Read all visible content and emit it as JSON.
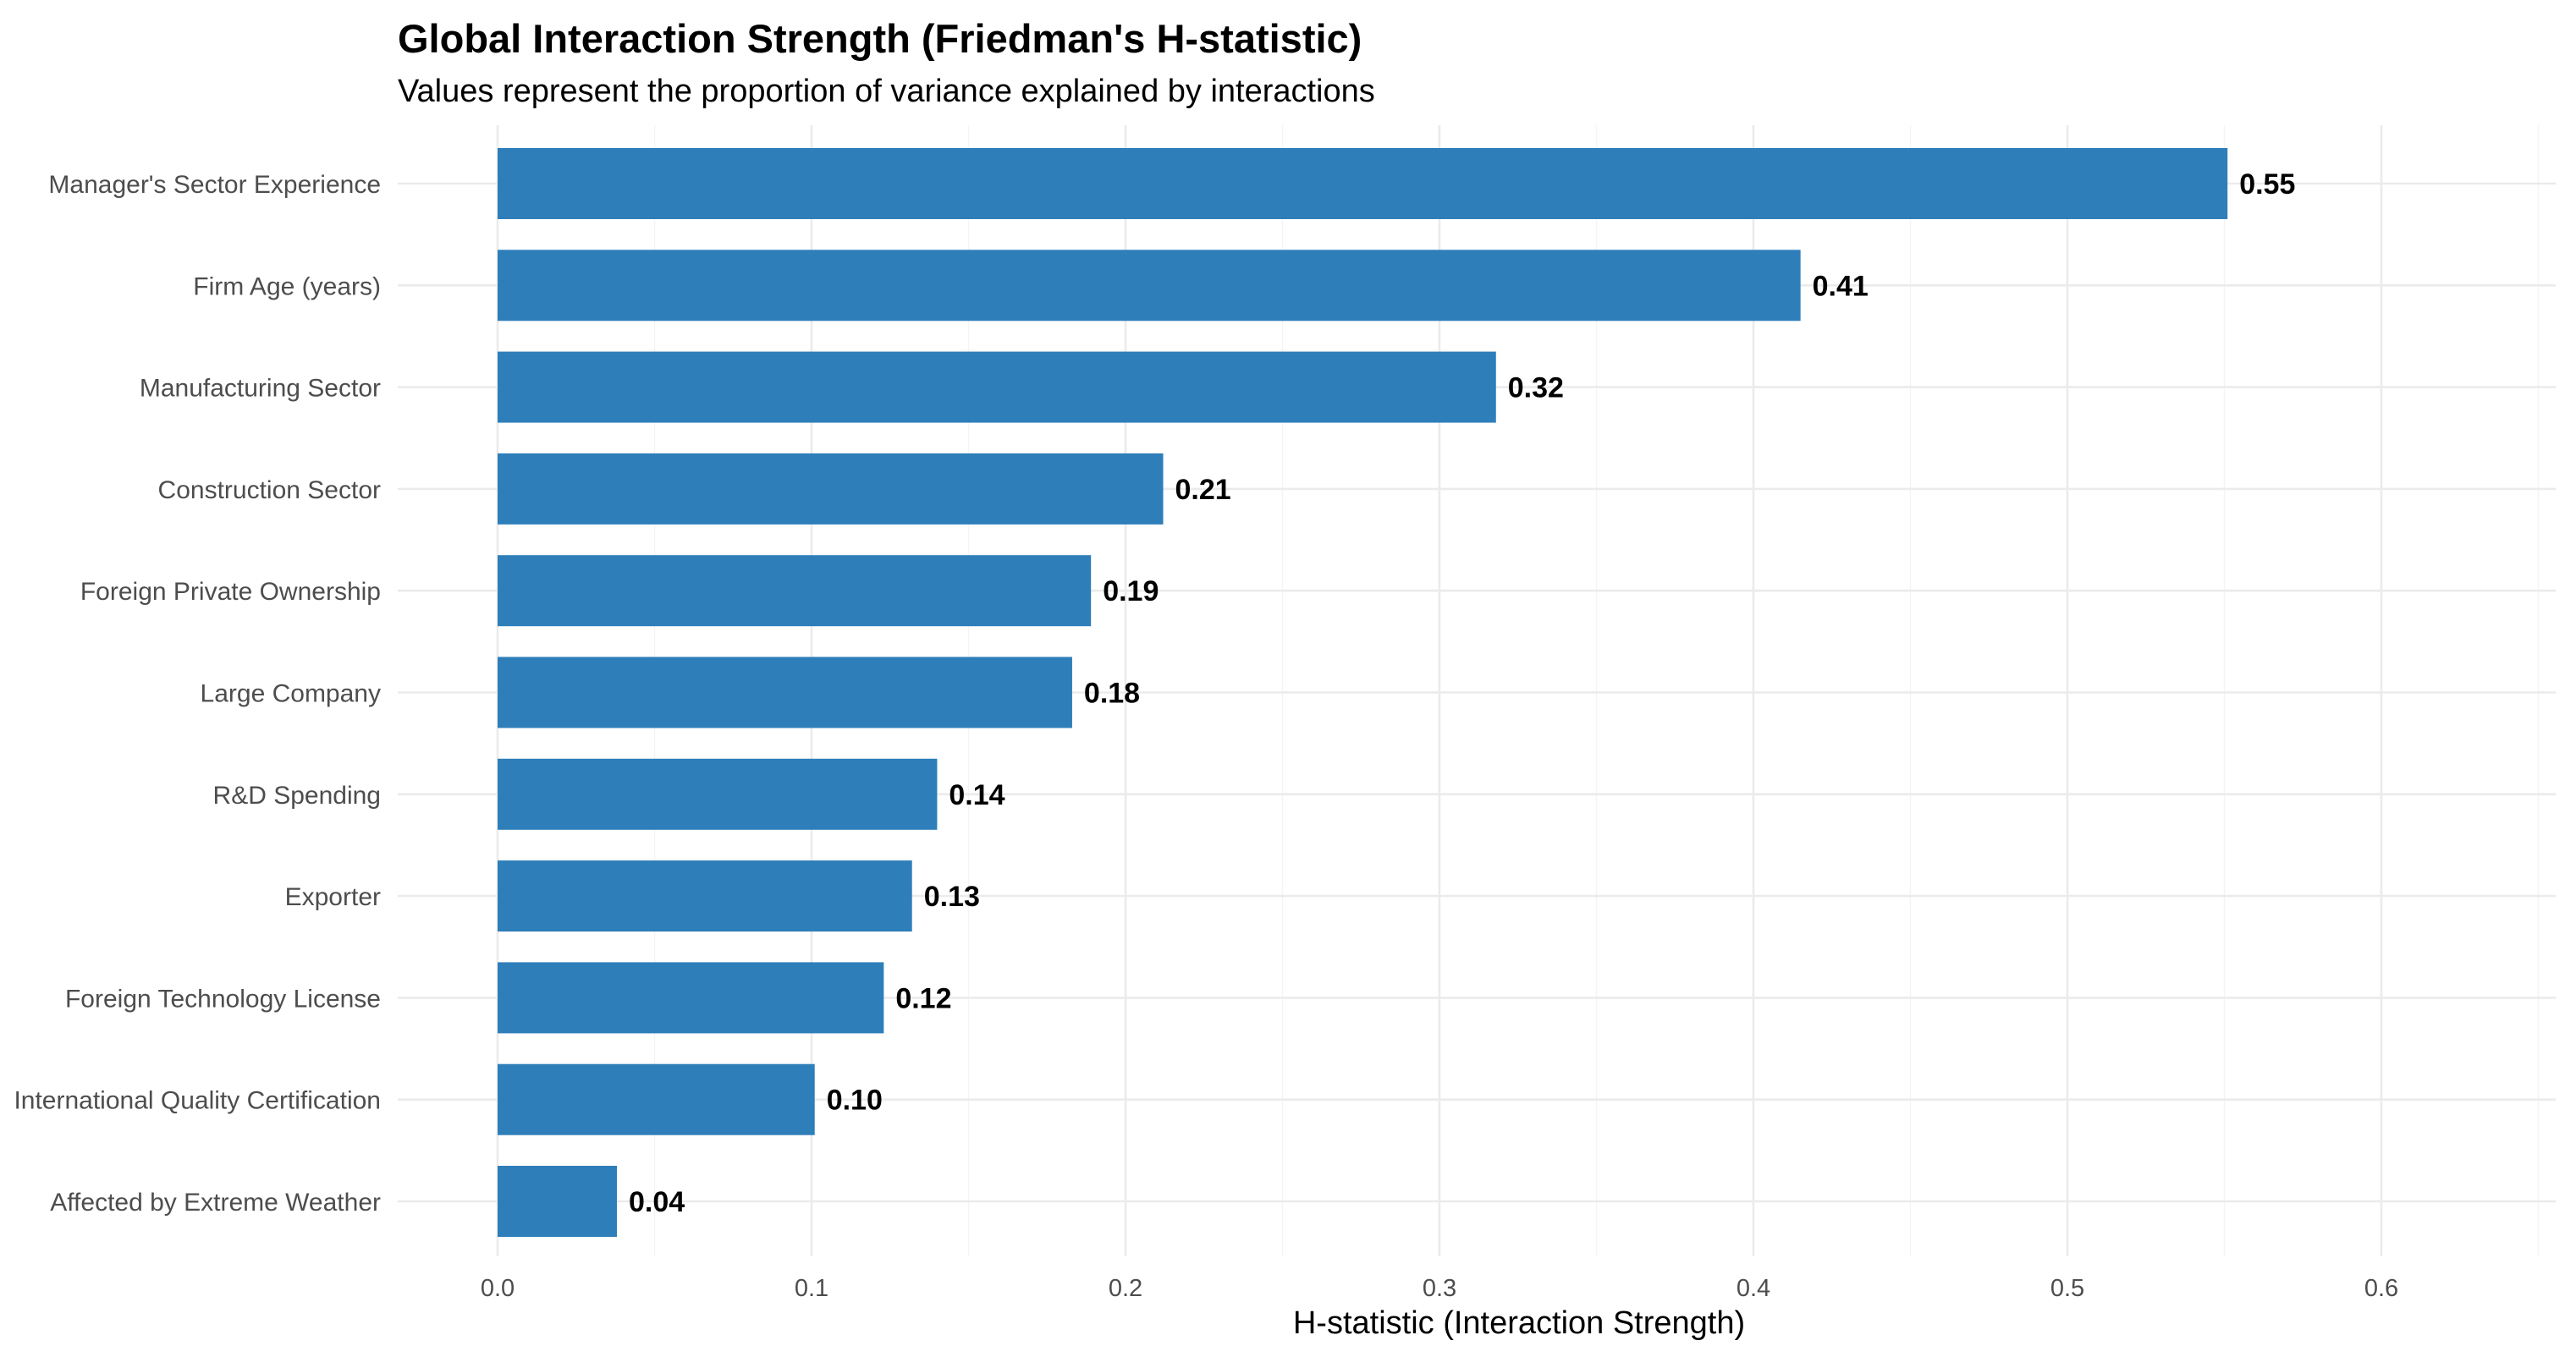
{
  "chart_data": {
    "type": "bar",
    "orientation": "horizontal",
    "title": "Global Interaction Strength (Friedman's H-statistic)",
    "subtitle": "Values represent the proportion of variance explained by interactions",
    "xlabel": "H-statistic (Interaction Strength)",
    "ylabel": "",
    "xlim": [
      0,
      0.65
    ],
    "x_ticks": [
      0.0,
      0.1,
      0.2,
      0.3,
      0.4,
      0.5,
      0.6
    ],
    "x_tick_labels": [
      "0.0",
      "0.1",
      "0.2",
      "0.3",
      "0.4",
      "0.5",
      "0.6"
    ],
    "grid": true,
    "legend": "none",
    "bar_color": "#2E7EBA",
    "categories": [
      "Manager's Sector Experience",
      "Firm Age (years)",
      "Manufacturing Sector",
      "Construction Sector",
      "Foreign Private Ownership",
      "Large Company",
      "R&D Spending",
      "Exporter",
      "Foreign Technology License",
      "International Quality Certification",
      "Affected by Extreme Weather"
    ],
    "values": [
      0.551,
      0.415,
      0.318,
      0.212,
      0.189,
      0.183,
      0.14,
      0.132,
      0.123,
      0.101,
      0.038
    ],
    "value_labels": [
      "0.55",
      "0.41",
      "0.32",
      "0.21",
      "0.19",
      "0.18",
      "0.14",
      "0.13",
      "0.12",
      "0.10",
      "0.04"
    ]
  }
}
